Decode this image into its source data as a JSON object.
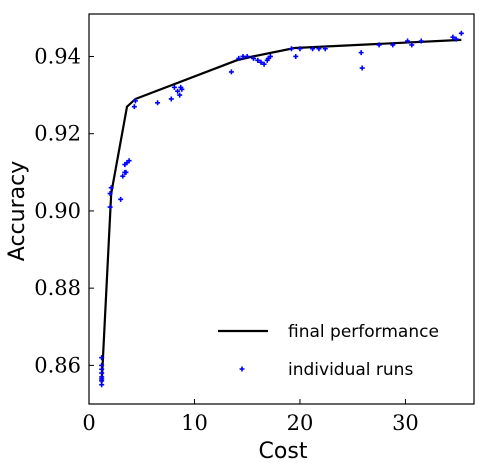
{
  "chart_data": {
    "type": "line",
    "xlabel": "Cost",
    "ylabel": "Accuracy",
    "xlim": [
      0,
      36.5
    ],
    "ylim": [
      0.85,
      0.951
    ],
    "x_ticks": [
      {
        "value": 0,
        "label": "0"
      },
      {
        "value": 10,
        "label": "10"
      },
      {
        "value": 20,
        "label": "20"
      },
      {
        "value": 30,
        "label": "30"
      }
    ],
    "y_ticks": [
      {
        "value": 0.86,
        "label": "0.86"
      },
      {
        "value": 0.88,
        "label": "0.88"
      },
      {
        "value": 0.9,
        "label": "0.90"
      },
      {
        "value": 0.92,
        "label": "0.92"
      },
      {
        "value": 0.94,
        "label": "0.94"
      }
    ],
    "grid": false,
    "legend_position": "bottom-right",
    "series": [
      {
        "name": "final performance",
        "kind": "line",
        "color": "#000000",
        "x": [
          1.2,
          2.1,
          3.6,
          4.4,
          14.0,
          15.5,
          19.5,
          35.3
        ],
        "y": [
          0.8555,
          0.9045,
          0.927,
          0.929,
          0.939,
          0.94,
          0.9422,
          0.9443
        ]
      },
      {
        "name": "individual runs",
        "kind": "scatter",
        "color": "#0000ff",
        "x": [
          1.2,
          1.2,
          1.2,
          1.2,
          1.2,
          1.2,
          1.2,
          1.2,
          2.0,
          2.0,
          2.1,
          3.0,
          3.2,
          3.4,
          3.4,
          3.5,
          3.6,
          3.8,
          4.3,
          4.4,
          6.5,
          7.8,
          8.1,
          8.4,
          8.6,
          8.7,
          8.8,
          13.5,
          14.2,
          14.6,
          15.0,
          15.6,
          16.0,
          16.3,
          16.6,
          16.9,
          17.0,
          17.2,
          19.2,
          19.6,
          20.0,
          21.2,
          21.8,
          22.4,
          25.8,
          25.9,
          27.5,
          28.8,
          30.2,
          30.6,
          31.5,
          34.5,
          34.8,
          35.3
        ],
        "y": [
          0.855,
          0.856,
          0.8565,
          0.857,
          0.858,
          0.859,
          0.86,
          0.862,
          0.901,
          0.9045,
          0.906,
          0.903,
          0.909,
          0.91,
          0.912,
          0.91,
          0.9125,
          0.913,
          0.927,
          0.9285,
          0.928,
          0.929,
          0.932,
          0.931,
          0.93,
          0.932,
          0.9315,
          0.936,
          0.9395,
          0.94,
          0.94,
          0.9395,
          0.939,
          0.9385,
          0.938,
          0.939,
          0.9395,
          0.94,
          0.942,
          0.94,
          0.942,
          0.942,
          0.942,
          0.942,
          0.941,
          0.937,
          0.943,
          0.943,
          0.944,
          0.943,
          0.944,
          0.945,
          0.9445,
          0.946
        ]
      }
    ]
  }
}
